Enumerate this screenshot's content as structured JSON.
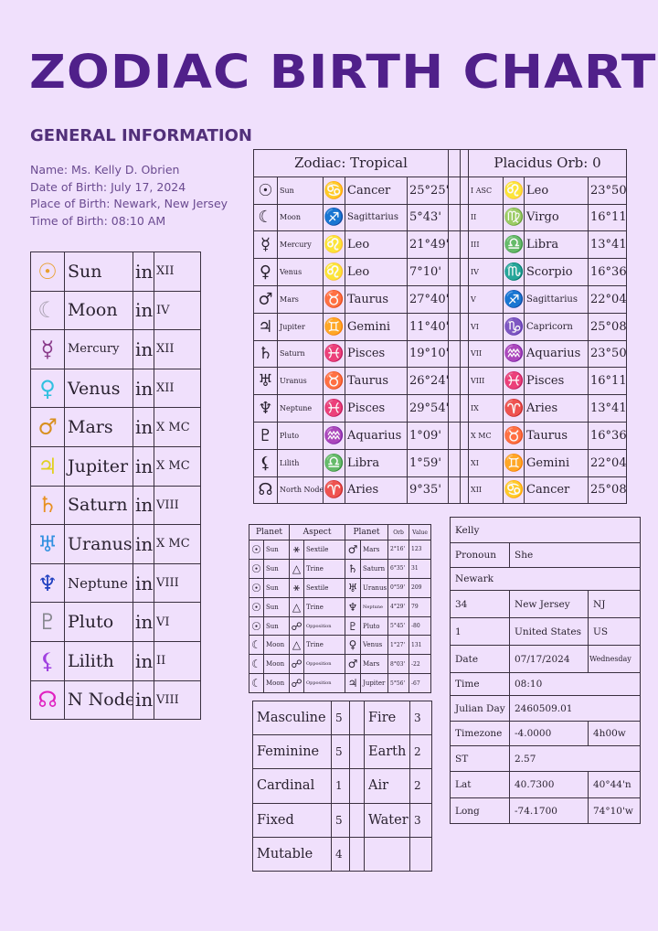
{
  "title": "ZODIAC BIRTH CHART",
  "general": {
    "heading": "GENERAL INFORMATION",
    "lines": [
      "Name: Ms. Kelly D. Obrien",
      "Date of Birth: July 17, 2024",
      "Place of Birth: Newark, New Jersey",
      "Time of Birth: 08:10 AM"
    ]
  },
  "planet_houses": [
    {
      "glyph": "☉",
      "icon": "sun-icon",
      "color": "#e8a030",
      "name": "Sun",
      "in": "in",
      "house": "XII"
    },
    {
      "glyph": "☾",
      "icon": "moon-icon",
      "color": "#a8a0b0",
      "name": "Moon",
      "in": "in",
      "house": "IV"
    },
    {
      "glyph": "☿",
      "icon": "mercury-icon",
      "color": "#8a3a8a",
      "name": "Mercury",
      "in": "in",
      "house": "XII"
    },
    {
      "glyph": "♀",
      "icon": "venus-icon",
      "color": "#30c0e0",
      "name": "Venus",
      "in": "in",
      "house": "XII"
    },
    {
      "glyph": "♂",
      "icon": "mars-icon",
      "color": "#d89020",
      "name": "Mars",
      "in": "in",
      "house": "X MC"
    },
    {
      "glyph": "♃",
      "icon": "jupiter-icon",
      "color": "#e0d020",
      "name": "Jupiter",
      "in": "in",
      "house": "X MC"
    },
    {
      "glyph": "♄",
      "icon": "saturn-icon",
      "color": "#e89020",
      "name": "Saturn",
      "in": "in",
      "house": "VIII"
    },
    {
      "glyph": "♅",
      "icon": "uranus-icon",
      "color": "#3090e0",
      "name": "Uranus",
      "in": "in",
      "house": "X MC"
    },
    {
      "glyph": "♆",
      "icon": "neptune-icon",
      "color": "#2040c0",
      "name": "Neptune",
      "in": "in",
      "house": "VIII"
    },
    {
      "glyph": "♇",
      "icon": "pluto-icon",
      "color": "#888890",
      "name": "Pluto",
      "in": "in",
      "house": "VI"
    },
    {
      "glyph": "⚸",
      "icon": "lilith-icon",
      "color": "#a040e0",
      "name": "Lilith",
      "in": "in",
      "house": "II"
    },
    {
      "glyph": "☊",
      "icon": "north-node-icon",
      "color": "#e020c0",
      "name": "N Node",
      "in": "in",
      "house": "VIII"
    }
  ],
  "zodiac": {
    "heading": "Zodiac: Tropical",
    "rows": [
      {
        "pg": "☉",
        "p": "Sun",
        "sg": "♋",
        "s": "Cancer",
        "d": "25°25'"
      },
      {
        "pg": "☾",
        "p": "Moon",
        "sg": "♐",
        "s": "Sagittarius",
        "d": "5°43'"
      },
      {
        "pg": "☿",
        "p": "Mercury",
        "sg": "♌",
        "s": "Leo",
        "d": "21°49'"
      },
      {
        "pg": "♀",
        "p": "Venus",
        "sg": "♌",
        "s": "Leo",
        "d": "7°10'"
      },
      {
        "pg": "♂",
        "p": "Mars",
        "sg": "♉",
        "s": "Taurus",
        "d": "27°40'"
      },
      {
        "pg": "♃",
        "p": "Jupiter",
        "sg": "♊",
        "s": "Gemini",
        "d": "11°40'"
      },
      {
        "pg": "♄",
        "p": "Saturn",
        "sg": "♓",
        "s": "Pisces",
        "d": "19°10'"
      },
      {
        "pg": "♅",
        "p": "Uranus",
        "sg": "♉",
        "s": "Taurus",
        "d": "26°24'"
      },
      {
        "pg": "♆",
        "p": "Neptune",
        "sg": "♓",
        "s": "Pisces",
        "d": "29°54'"
      },
      {
        "pg": "♇",
        "p": "Pluto",
        "sg": "♒",
        "s": "Aquarius",
        "d": "1°09'"
      },
      {
        "pg": "⚸",
        "p": "Lilith",
        "sg": "♎",
        "s": "Libra",
        "d": "1°59'"
      },
      {
        "pg": "☊",
        "p": "North Node",
        "sg": "♈",
        "s": "Aries",
        "d": "9°35'"
      }
    ]
  },
  "houses": {
    "heading": "Placidus Orb: 0",
    "rows": [
      {
        "h": "I ASC",
        "sg": "♌",
        "s": "Leo",
        "d": "23°50'"
      },
      {
        "h": "II",
        "sg": "♍",
        "s": "Virgo",
        "d": "16°11'"
      },
      {
        "h": "III",
        "sg": "♎",
        "s": "Libra",
        "d": "13°41'"
      },
      {
        "h": "IV",
        "sg": "♏",
        "s": "Scorpio",
        "d": "16°36'"
      },
      {
        "h": "V",
        "sg": "♐",
        "s": "Sagittarius",
        "d": "22°04'"
      },
      {
        "h": "VI",
        "sg": "♑",
        "s": "Capricorn",
        "d": "25°08'"
      },
      {
        "h": "VII",
        "sg": "♒",
        "s": "Aquarius",
        "d": "23°50'"
      },
      {
        "h": "VIII",
        "sg": "♓",
        "s": "Pisces",
        "d": "16°11'"
      },
      {
        "h": "IX",
        "sg": "♈",
        "s": "Aries",
        "d": "13°41'"
      },
      {
        "h": "X MC",
        "sg": "♉",
        "s": "Taurus",
        "d": "16°36'"
      },
      {
        "h": "XI",
        "sg": "♊",
        "s": "Gemini",
        "d": "22°04'"
      },
      {
        "h": "XII",
        "sg": "♋",
        "s": "Cancer",
        "d": "25°08'"
      }
    ]
  },
  "aspects": {
    "headers": [
      "Planet",
      "Aspect",
      "Planet",
      "Orb",
      "Value"
    ],
    "rows": [
      {
        "g1": "☉",
        "p1": "Sun",
        "ag": "⚹",
        "a": "Sextile",
        "g2": "♂",
        "p2": "Mars",
        "o": "2°16'",
        "v": "123"
      },
      {
        "g1": "☉",
        "p1": "Sun",
        "ag": "△",
        "a": "Trine",
        "g2": "♄",
        "p2": "Saturn",
        "o": "6°35'",
        "v": "31"
      },
      {
        "g1": "☉",
        "p1": "Sun",
        "ag": "⚹",
        "a": "Sextile",
        "g2": "♅",
        "p2": "Uranus",
        "o": "0°59'",
        "v": "209"
      },
      {
        "g1": "☉",
        "p1": "Sun",
        "ag": "△",
        "a": "Trine",
        "g2": "♆",
        "p2": "Neptune",
        "o": "4°29'",
        "v": "79"
      },
      {
        "g1": "☉",
        "p1": "Sun",
        "ag": "☍",
        "a": "Opposition",
        "g2": "♇",
        "p2": "Pluto",
        "o": "5°45'",
        "v": "-80"
      },
      {
        "g1": "☾",
        "p1": "Moon",
        "ag": "△",
        "a": "Trine",
        "g2": "♀",
        "p2": "Venus",
        "o": "1°27'",
        "v": "131"
      },
      {
        "g1": "☾",
        "p1": "Moon",
        "ag": "☍",
        "a": "Opposition",
        "g2": "♂",
        "p2": "Mars",
        "o": "8°03'",
        "v": "-22"
      },
      {
        "g1": "☾",
        "p1": "Moon",
        "ag": "☍",
        "a": "Opposition",
        "g2": "♃",
        "p2": "Jupiter",
        "o": "5°56'",
        "v": "-67"
      }
    ]
  },
  "elements": [
    {
      "a": "Masculine",
      "an": "5",
      "b": "Fire",
      "bn": "3"
    },
    {
      "a": "Feminine",
      "an": "5",
      "b": "Earth",
      "bn": "2"
    },
    {
      "a": "Cardinal",
      "an": "1",
      "b": "Air",
      "bn": "2"
    },
    {
      "a": "Fixed",
      "an": "5",
      "b": "Water",
      "bn": "3"
    },
    {
      "a": "Mutable",
      "an": "4",
      "b": "",
      "bn": ""
    }
  ],
  "details": [
    [
      {
        "t": "Kelly",
        "c": 3
      }
    ],
    [
      {
        "t": "Pronoun"
      },
      {
        "t": "She",
        "c": 2
      }
    ],
    [
      {
        "t": "Newark",
        "c": 3
      }
    ],
    [
      {
        "t": "34"
      },
      {
        "t": "New Jersey"
      },
      {
        "t": "NJ"
      }
    ],
    [
      {
        "t": "1"
      },
      {
        "t": "United States"
      },
      {
        "t": "US"
      }
    ],
    [
      {
        "t": "Date"
      },
      {
        "t": "07/17/2024"
      },
      {
        "t": "Wednesday"
      }
    ],
    [
      {
        "t": "Time"
      },
      {
        "t": "08:10",
        "c": 2
      }
    ],
    [
      {
        "t": "Julian Day"
      },
      {
        "t": "2460509.01",
        "c": 2
      }
    ],
    [
      {
        "t": "Timezone"
      },
      {
        "t": "-4.0000"
      },
      {
        "t": "4h00w"
      }
    ],
    [
      {
        "t": "ST"
      },
      {
        "t": "2.57",
        "c": 2
      }
    ],
    [
      {
        "t": "Lat"
      },
      {
        "t": "40.7300"
      },
      {
        "t": "40°44'n"
      }
    ],
    [
      {
        "t": "Long"
      },
      {
        "t": "-74.1700"
      },
      {
        "t": "74°10'w"
      }
    ]
  ]
}
